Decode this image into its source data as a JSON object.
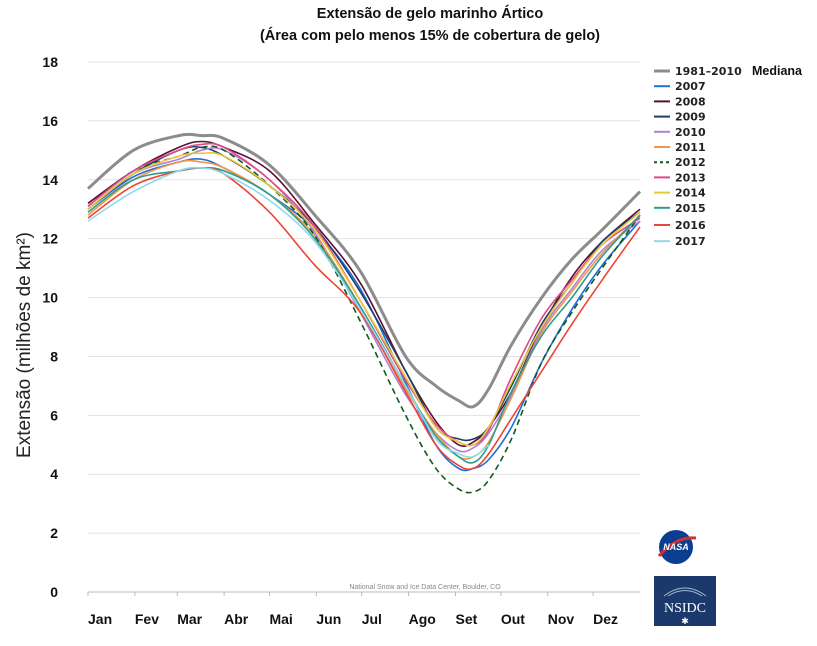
{
  "chart_data": {
    "type": "line",
    "title": "Extensão de gelo marinho Ártico",
    "subtitle": "(Área com pelo menos 15% de cobertura de gelo)",
    "ylabel": "Extensão (milhões de km²)",
    "xlabel": "",
    "ylim": [
      0,
      18
    ],
    "yticks": [
      0,
      2,
      4,
      6,
      8,
      10,
      12,
      14,
      16,
      18
    ],
    "xlim": [
      0,
      365
    ],
    "month_labels": [
      "Jan",
      "Fev",
      "Mar",
      "Abr",
      "Mai",
      "Jun",
      "Jul",
      "Ago",
      "Set",
      "Out",
      "Nov",
      "Dez"
    ],
    "month_positions": [
      0,
      31,
      59,
      90,
      120,
      151,
      181,
      212,
      243,
      273,
      304,
      334
    ],
    "grid": true,
    "legend_position": "right",
    "legend_extra_label": "Mediana",
    "credit": "National Snow and Ice Data Center, Boulder, CO",
    "x": [
      0,
      30,
      60,
      75,
      90,
      120,
      150,
      180,
      210,
      230,
      245,
      255,
      265,
      280,
      300,
      320,
      340,
      365
    ],
    "series": [
      {
        "name": "1981–2010",
        "color": "#8c8c8c",
        "width": 3,
        "dash": "",
        "values": [
          13.7,
          15.0,
          15.5,
          15.5,
          15.4,
          14.5,
          12.8,
          10.9,
          8.0,
          7.0,
          6.5,
          6.3,
          6.9,
          8.4,
          10.0,
          11.3,
          12.3,
          13.6
        ]
      },
      {
        "name": "2007",
        "color": "#1f6fd6",
        "width": 1.6,
        "dash": "",
        "values": [
          13.0,
          14.1,
          14.6,
          14.7,
          14.4,
          13.5,
          12.3,
          10.3,
          7.1,
          5.0,
          4.2,
          4.2,
          4.5,
          5.6,
          7.8,
          9.6,
          11.1,
          12.6
        ]
      },
      {
        "name": "2008",
        "color": "#5a0f34",
        "width": 1.6,
        "dash": "",
        "values": [
          13.2,
          14.3,
          15.1,
          15.3,
          15.1,
          14.3,
          12.5,
          10.5,
          7.5,
          5.8,
          5.0,
          5.1,
          5.6,
          6.8,
          9.0,
          10.7,
          11.9,
          13.0
        ]
      },
      {
        "name": "2009",
        "color": "#1f3f66",
        "width": 1.6,
        "dash": "",
        "values": [
          13.0,
          14.2,
          15.0,
          15.1,
          14.8,
          13.8,
          12.4,
          10.2,
          7.5,
          5.6,
          5.2,
          5.2,
          5.6,
          7.0,
          9.1,
          10.5,
          11.9,
          12.9
        ]
      },
      {
        "name": "2010",
        "color": "#b07fd3",
        "width": 1.6,
        "dash": "",
        "values": [
          13.0,
          14.2,
          14.7,
          15.0,
          15.0,
          14.0,
          12.2,
          9.5,
          6.7,
          5.4,
          4.8,
          4.9,
          5.4,
          6.7,
          8.9,
          10.3,
          11.6,
          12.6
        ]
      },
      {
        "name": "2011",
        "color": "#f0964a",
        "width": 1.6,
        "dash": "",
        "values": [
          12.8,
          14.0,
          14.6,
          14.6,
          14.4,
          13.5,
          12.1,
          9.7,
          6.9,
          5.4,
          4.6,
          4.6,
          5.1,
          6.6,
          8.8,
          10.2,
          11.5,
          12.8
        ]
      },
      {
        "name": "2012",
        "color": "#0f5a1e",
        "width": 1.6,
        "dash": "6,4",
        "values": [
          13.1,
          14.3,
          14.8,
          15.1,
          15.0,
          13.8,
          12.1,
          9.2,
          6.0,
          4.2,
          3.5,
          3.4,
          3.8,
          5.2,
          7.8,
          9.5,
          11.0,
          12.8
        ]
      },
      {
        "name": "2013",
        "color": "#e0488a",
        "width": 1.6,
        "dash": "",
        "values": [
          13.1,
          14.3,
          15.0,
          15.2,
          15.1,
          14.0,
          12.4,
          9.9,
          7.2,
          5.7,
          5.1,
          5.0,
          5.5,
          7.3,
          9.3,
          10.6,
          11.8,
          12.7
        ]
      },
      {
        "name": "2014",
        "color": "#e8c837",
        "width": 1.6,
        "dash": "",
        "values": [
          13.0,
          14.2,
          14.8,
          14.9,
          14.8,
          13.8,
          12.3,
          9.9,
          7.3,
          5.6,
          5.1,
          5.0,
          5.6,
          7.1,
          9.0,
          10.5,
          11.8,
          12.9
        ]
      },
      {
        "name": "2015",
        "color": "#2e9c8f",
        "width": 1.6,
        "dash": "",
        "values": [
          12.9,
          14.0,
          14.3,
          14.4,
          14.3,
          13.5,
          12.0,
          9.7,
          7.0,
          5.3,
          4.6,
          4.4,
          5.0,
          6.8,
          8.7,
          10.0,
          11.4,
          12.8
        ]
      },
      {
        "name": "2016",
        "color": "#ee4433",
        "width": 1.6,
        "dash": "",
        "values": [
          12.7,
          13.8,
          14.3,
          14.4,
          14.2,
          12.9,
          11.1,
          9.5,
          6.8,
          5.0,
          4.3,
          4.2,
          4.7,
          5.9,
          7.5,
          9.1,
          10.6,
          12.4
        ]
      },
      {
        "name": "2017",
        "color": "#8fdaea",
        "width": 1.6,
        "dash": "",
        "values": [
          12.6,
          13.6,
          14.3,
          14.4,
          14.2,
          13.3,
          11.9,
          9.6,
          7.0,
          5.2,
          4.7,
          4.6,
          5.0,
          null,
          null,
          null,
          null,
          null
        ]
      }
    ]
  },
  "logos": {
    "nasa": "NASA",
    "nsidc": "NSIDC"
  }
}
